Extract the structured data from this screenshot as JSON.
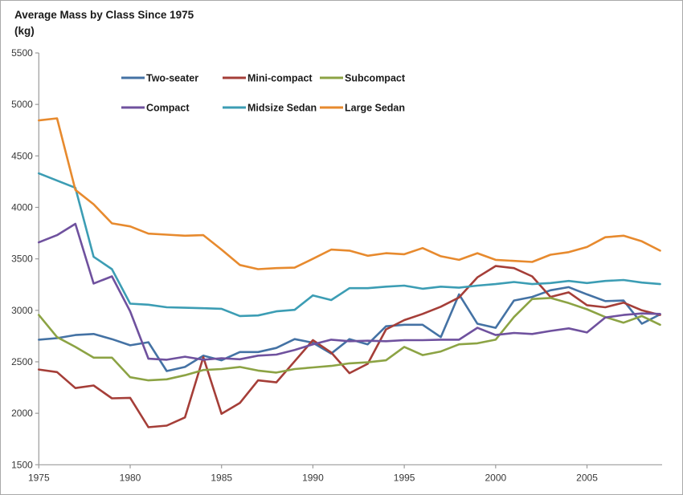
{
  "chart_data": {
    "type": "line",
    "title": "Average Mass by Class Since 1975",
    "subtitle": "(kg)",
    "xlabel": "",
    "ylabel": "(kg)",
    "x": [
      1975,
      1976,
      1977,
      1978,
      1979,
      1980,
      1981,
      1982,
      1983,
      1984,
      1985,
      1986,
      1987,
      1988,
      1989,
      1990,
      1991,
      1992,
      1993,
      1994,
      1995,
      1996,
      1997,
      1998,
      1999,
      2000,
      2001,
      2002,
      2003,
      2004,
      2005,
      2006,
      2007,
      2008,
      2009
    ],
    "x_ticks": [
      1975,
      1980,
      1985,
      1990,
      1995,
      2000,
      2005
    ],
    "y_ticks": [
      1500,
      2000,
      2500,
      3000,
      3500,
      4000,
      4500,
      5000,
      5500
    ],
    "xlim": [
      1975,
      2009
    ],
    "ylim": [
      1500,
      5500
    ],
    "grid": false,
    "legend_position": "top-inside-two-rows",
    "series": [
      {
        "name": "Two-seater",
        "color": "#4472a4",
        "values": [
          2715,
          2730,
          2760,
          2770,
          2720,
          2660,
          2690,
          2410,
          2450,
          2560,
          2515,
          2595,
          2595,
          2635,
          2720,
          2685,
          2580,
          2720,
          2670,
          2845,
          2860,
          2860,
          2740,
          3155,
          2870,
          2830,
          3095,
          3130,
          3195,
          3225,
          3155,
          3090,
          3095,
          2870,
          2960
        ]
      },
      {
        "name": "Mini-compact",
        "color": "#a53e38",
        "values": [
          2425,
          2400,
          2245,
          2270,
          2145,
          2150,
          1865,
          1880,
          1960,
          2545,
          1995,
          2100,
          2320,
          2300,
          2505,
          2710,
          2590,
          2390,
          2480,
          2815,
          2905,
          2965,
          3035,
          3125,
          3320,
          3430,
          3410,
          3330,
          3130,
          3175,
          3050,
          3030,
          3075,
          3000,
          2955
        ]
      },
      {
        "name": "Subcompact",
        "color": "#8ca344",
        "values": [
          2955,
          2740,
          2645,
          2540,
          2540,
          2350,
          2320,
          2330,
          2370,
          2420,
          2430,
          2450,
          2415,
          2395,
          2430,
          2445,
          2460,
          2485,
          2495,
          2515,
          2645,
          2565,
          2600,
          2670,
          2680,
          2715,
          2935,
          3110,
          3120,
          3070,
          3010,
          2935,
          2880,
          2945,
          2860
        ]
      },
      {
        "name": "Compact",
        "color": "#6f519e",
        "values": [
          3660,
          3730,
          3840,
          3260,
          3330,
          2990,
          2530,
          2520,
          2550,
          2520,
          2535,
          2525,
          2560,
          2570,
          2615,
          2670,
          2715,
          2700,
          2705,
          2700,
          2710,
          2710,
          2715,
          2715,
          2830,
          2760,
          2780,
          2770,
          2800,
          2825,
          2785,
          2930,
          2955,
          2970,
          2965
        ]
      },
      {
        "name": "Midsize Sedan",
        "color": "#3c9db4",
        "values": [
          4330,
          4260,
          4190,
          3520,
          3400,
          3065,
          3055,
          3030,
          3025,
          3020,
          3015,
          2945,
          2950,
          2990,
          3005,
          3145,
          3100,
          3215,
          3215,
          3230,
          3240,
          3210,
          3230,
          3220,
          3240,
          3255,
          3275,
          3255,
          3265,
          3285,
          3265,
          3285,
          3295,
          3270,
          3255
        ]
      },
      {
        "name": "Large Sedan",
        "color": "#e78a2e",
        "values": [
          4845,
          4865,
          4170,
          4030,
          3845,
          3815,
          3745,
          3735,
          3725,
          3730,
          3590,
          3440,
          3400,
          3410,
          3415,
          3500,
          3590,
          3580,
          3530,
          3555,
          3545,
          3605,
          3525,
          3490,
          3555,
          3490,
          3480,
          3470,
          3540,
          3565,
          3615,
          3710,
          3725,
          3670,
          3580
        ]
      }
    ],
    "axis_color": "#9b9b9b",
    "tick_label_color": "#383838"
  }
}
